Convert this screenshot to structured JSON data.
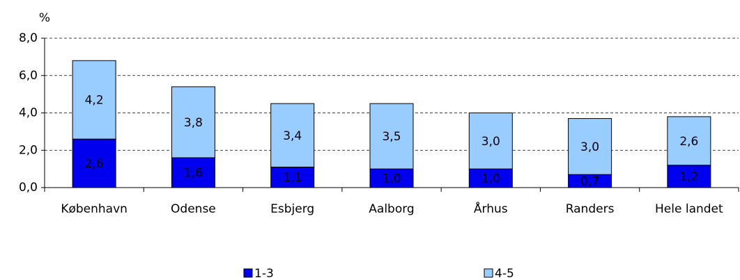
{
  "chart_data": {
    "type": "bar",
    "stacked": true,
    "y_label": "%",
    "categories": [
      "København",
      "Odense",
      "Esbjerg",
      "Aalborg",
      "Århus",
      "Randers",
      "Hele landet"
    ],
    "series": [
      {
        "name": "1-3",
        "color": "#0000ee",
        "values": [
          2.6,
          1.6,
          1.1,
          1.0,
          1.0,
          0.7,
          1.2
        ],
        "value_labels": [
          "2,6",
          "1,6",
          "1,1",
          "1,0",
          "1,0",
          "0,7",
          "1,2"
        ]
      },
      {
        "name": "4-5",
        "color": "#99ccff",
        "values": [
          4.2,
          3.8,
          3.4,
          3.5,
          3.0,
          3.0,
          2.6
        ],
        "value_labels": [
          "4,2",
          "3,8",
          "3,4",
          "3,5",
          "3,0",
          "3,0",
          "2,6"
        ]
      }
    ],
    "ylim": [
      0,
      8
    ],
    "yticks": [
      {
        "value": 0,
        "label": "0,0"
      },
      {
        "value": 2,
        "label": "2,0"
      },
      {
        "value": 4,
        "label": "4,0"
      },
      {
        "value": 6,
        "label": "6,0"
      },
      {
        "value": 8,
        "label": "8,0"
      }
    ],
    "grid": true,
    "legend": "bottom"
  }
}
